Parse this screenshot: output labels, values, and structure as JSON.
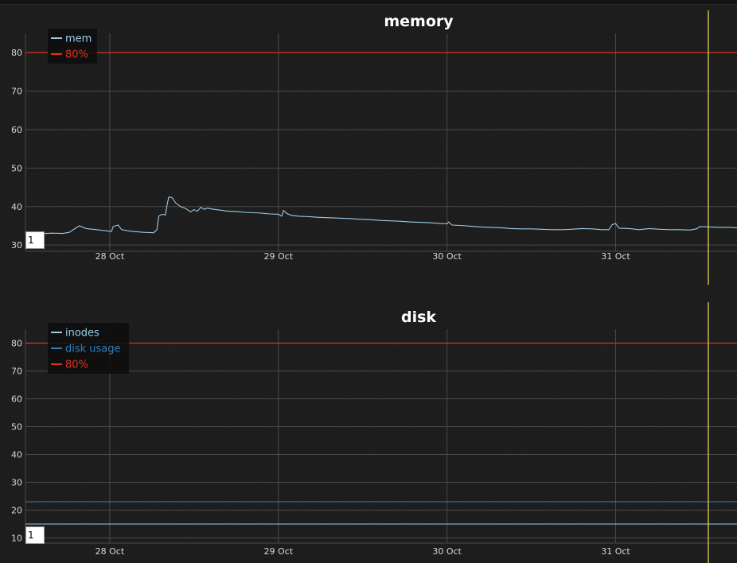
{
  "colors": {
    "background": "#1c1c1c",
    "grid": "#4a4a4a",
    "threshold": "#e0321e",
    "cursor": "#f2e34c",
    "mem": "#9ccbe8",
    "inodes": "#9ccbe8",
    "disk_usage": "#2f7fbf",
    "legend_bg": "#0e0e0e"
  },
  "chart_data": [
    {
      "type": "line",
      "title": "memory",
      "xlabel": "",
      "ylabel": "",
      "x_ticks": [
        "28 Oct",
        "29 Oct",
        "30 Oct",
        "31 Oct"
      ],
      "x_tick_positions": [
        1,
        2,
        3,
        4
      ],
      "xlim": [
        0.5,
        4.72
      ],
      "y_ticks": [
        30,
        40,
        50,
        60,
        70,
        80
      ],
      "ylim": [
        29,
        85
      ],
      "grid": true,
      "legend_position": "top-left",
      "cursor_x": 4.55,
      "page_input_value": "1",
      "series": [
        {
          "name": "mem",
          "color_key": "mem",
          "points": [
            [
              0.5,
              32.8
            ],
            [
              0.58,
              32.7
            ],
            [
              0.62,
              33.0
            ],
            [
              0.66,
              33.1
            ],
            [
              0.72,
              33.0
            ],
            [
              0.76,
              33.3
            ],
            [
              0.8,
              34.5
            ],
            [
              0.82,
              35.0
            ],
            [
              0.86,
              34.3
            ],
            [
              0.92,
              34.0
            ],
            [
              0.98,
              33.7
            ],
            [
              1.01,
              33.5
            ],
            [
              1.02,
              34.8
            ],
            [
              1.05,
              35.2
            ],
            [
              1.07,
              34.0
            ],
            [
              1.12,
              33.6
            ],
            [
              1.2,
              33.3
            ],
            [
              1.26,
              33.2
            ],
            [
              1.28,
              34.0
            ],
            [
              1.29,
              37.5
            ],
            [
              1.31,
              38.0
            ],
            [
              1.33,
              37.8
            ],
            [
              1.34,
              40.5
            ],
            [
              1.35,
              42.5
            ],
            [
              1.37,
              42.3
            ],
            [
              1.39,
              41.0
            ],
            [
              1.42,
              40.0
            ],
            [
              1.45,
              39.5
            ],
            [
              1.48,
              38.6
            ],
            [
              1.5,
              39.2
            ],
            [
              1.52,
              38.8
            ],
            [
              1.54,
              39.8
            ],
            [
              1.56,
              39.3
            ],
            [
              1.58,
              39.6
            ],
            [
              1.6,
              39.4
            ],
            [
              1.65,
              39.1
            ],
            [
              1.7,
              38.8
            ],
            [
              1.75,
              38.7
            ],
            [
              1.8,
              38.5
            ],
            [
              1.85,
              38.4
            ],
            [
              1.9,
              38.3
            ],
            [
              1.95,
              38.1
            ],
            [
              2.0,
              38.0
            ],
            [
              2.02,
              37.5
            ],
            [
              2.03,
              39.0
            ],
            [
              2.05,
              38.2
            ],
            [
              2.08,
              37.7
            ],
            [
              2.12,
              37.5
            ],
            [
              2.18,
              37.4
            ],
            [
              2.24,
              37.2
            ],
            [
              2.3,
              37.1
            ],
            [
              2.36,
              37.0
            ],
            [
              2.42,
              36.9
            ],
            [
              2.48,
              36.7
            ],
            [
              2.54,
              36.6
            ],
            [
              2.6,
              36.4
            ],
            [
              2.66,
              36.3
            ],
            [
              2.72,
              36.2
            ],
            [
              2.78,
              36.0
            ],
            [
              2.84,
              35.9
            ],
            [
              2.9,
              35.8
            ],
            [
              2.96,
              35.6
            ],
            [
              3.0,
              35.5
            ],
            [
              3.01,
              36.0
            ],
            [
              3.03,
              35.2
            ],
            [
              3.08,
              35.1
            ],
            [
              3.14,
              34.9
            ],
            [
              3.2,
              34.7
            ],
            [
              3.26,
              34.6
            ],
            [
              3.32,
              34.5
            ],
            [
              3.38,
              34.3
            ],
            [
              3.44,
              34.2
            ],
            [
              3.5,
              34.2
            ],
            [
              3.56,
              34.1
            ],
            [
              3.62,
              34.0
            ],
            [
              3.68,
              34.0
            ],
            [
              3.74,
              34.1
            ],
            [
              3.8,
              34.3
            ],
            [
              3.86,
              34.2
            ],
            [
              3.92,
              34.0
            ],
            [
              3.96,
              34.0
            ],
            [
              3.98,
              35.3
            ],
            [
              4.0,
              35.6
            ],
            [
              4.02,
              34.4
            ],
            [
              4.08,
              34.3
            ],
            [
              4.14,
              34.0
            ],
            [
              4.2,
              34.3
            ],
            [
              4.26,
              34.1
            ],
            [
              4.32,
              34.0
            ],
            [
              4.38,
              34.0
            ],
            [
              4.44,
              33.9
            ],
            [
              4.48,
              34.2
            ],
            [
              4.5,
              34.8
            ],
            [
              4.56,
              34.7
            ],
            [
              4.62,
              34.6
            ],
            [
              4.68,
              34.6
            ],
            [
              4.72,
              34.5
            ]
          ]
        },
        {
          "name": "80%",
          "color_key": "threshold",
          "points": [
            [
              0.5,
              80
            ],
            [
              4.72,
              80
            ]
          ]
        }
      ]
    },
    {
      "type": "line",
      "title": "disk",
      "xlabel": "",
      "ylabel": "",
      "x_ticks": [
        "28 Oct",
        "29 Oct",
        "30 Oct",
        "31 Oct"
      ],
      "x_tick_positions": [
        1,
        2,
        3,
        4
      ],
      "xlim": [
        0.5,
        4.72
      ],
      "y_ticks": [
        10,
        20,
        30,
        40,
        50,
        60,
        70,
        80
      ],
      "ylim": [
        9,
        85
      ],
      "grid": true,
      "legend_position": "top-left",
      "cursor_x": 4.55,
      "page_input_value": "1",
      "series": [
        {
          "name": "inodes",
          "color_key": "inodes",
          "points": [
            [
              0.5,
              15.0
            ],
            [
              4.72,
              15.0
            ]
          ]
        },
        {
          "name": "disk usage",
          "color_key": "disk_usage",
          "points": [
            [
              0.5,
              23.0
            ],
            [
              4.72,
              23.0
            ]
          ]
        },
        {
          "name": "80%",
          "color_key": "threshold",
          "points": [
            [
              0.5,
              80
            ],
            [
              4.72,
              80
            ]
          ]
        }
      ]
    }
  ]
}
